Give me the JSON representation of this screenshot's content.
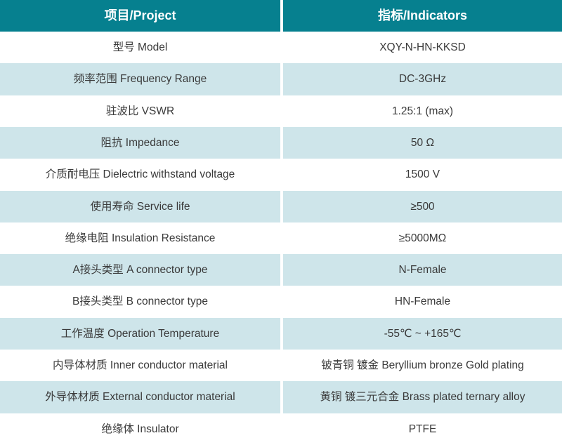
{
  "colors": {
    "header_bg": "#06808f",
    "header_text": "#ffffff",
    "row_bg": "#ffffff",
    "row_alt_bg": "#cee5ea",
    "body_text": "#3a3a3a"
  },
  "table": {
    "header": {
      "project": "项目/Project",
      "indicator": "指标/Indicators"
    },
    "rows": [
      {
        "project": "型号 Model",
        "indicator": "XQY-N-HN-KKSD"
      },
      {
        "project": "频率范围 Frequency Range",
        "indicator": "DC-3GHz"
      },
      {
        "project": "驻波比 VSWR",
        "indicator": "1.25:1 (max)"
      },
      {
        "project": "阻抗 Impedance",
        "indicator": "50 Ω"
      },
      {
        "project": "介质耐电压 Dielectric withstand voltage",
        "indicator": "1500 V"
      },
      {
        "project": "使用寿命 Service life",
        "indicator": "≥500"
      },
      {
        "project": "绝缘电阻 Insulation Resistance",
        "indicator": "≥5000MΩ"
      },
      {
        "project": "A接头类型 A connector type",
        "indicator": "N-Female"
      },
      {
        "project": "B接头类型 B connector type",
        "indicator": "HN-Female"
      },
      {
        "project": "工作温度 Operation Temperature",
        "indicator": "-55℃ ~ +165℃"
      },
      {
        "project": "内导体材质 Inner conductor material",
        "indicator": "铍青铜 镀金 Beryllium bronze Gold plating"
      },
      {
        "project": "外导体材质 External conductor material",
        "indicator": "黄铜 镀三元合金 Brass plated ternary alloy"
      },
      {
        "project": "绝缘体 Insulator",
        "indicator": "PTFE"
      }
    ]
  }
}
